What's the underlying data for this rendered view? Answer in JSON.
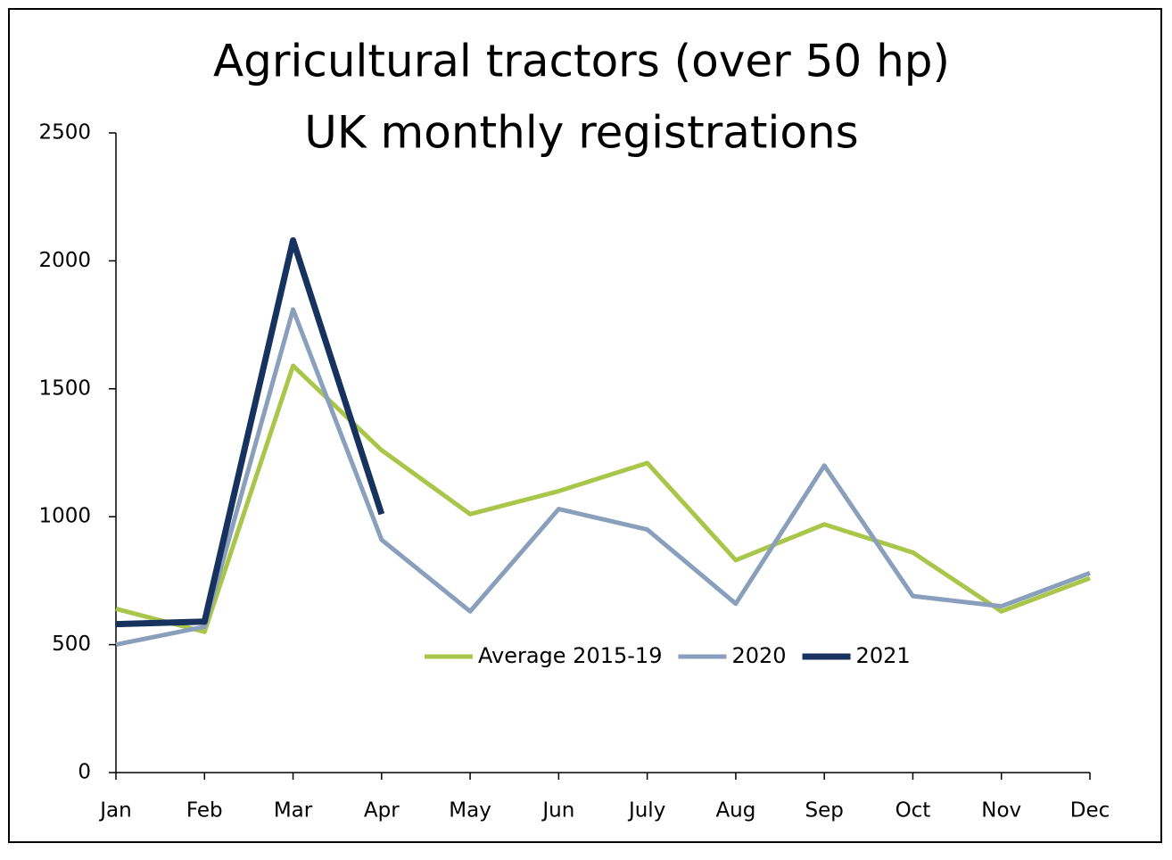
{
  "chart_data": {
    "type": "line",
    "title": [
      "Agricultural tractors (over 50 hp)",
      "UK monthly registrations"
    ],
    "categories": [
      "Jan",
      "Feb",
      "Mar",
      "Apr",
      "May",
      "Jun",
      "July",
      "Aug",
      "Sep",
      "Oct",
      "Nov",
      "Dec"
    ],
    "series": [
      {
        "name": "Average 2015-19",
        "color": "#a9c64b",
        "width": 5,
        "values": [
          640,
          550,
          1590,
          1260,
          1010,
          1100,
          1210,
          830,
          970,
          860,
          630,
          760
        ]
      },
      {
        "name": "2020",
        "color": "#8a9fbc",
        "width": 5,
        "values": [
          500,
          570,
          1810,
          910,
          630,
          1030,
          950,
          660,
          1200,
          690,
          650,
          780
        ]
      },
      {
        "name": "2021",
        "color": "#17325f",
        "width": 7,
        "values": [
          580,
          590,
          2080,
          1010,
          null,
          null,
          null,
          null,
          null,
          null,
          null,
          null
        ]
      }
    ],
    "ylim": [
      0,
      2500
    ],
    "yticks": [
      0,
      500,
      1000,
      1500,
      2000,
      2500
    ],
    "grid": false,
    "legend": "bottom"
  }
}
